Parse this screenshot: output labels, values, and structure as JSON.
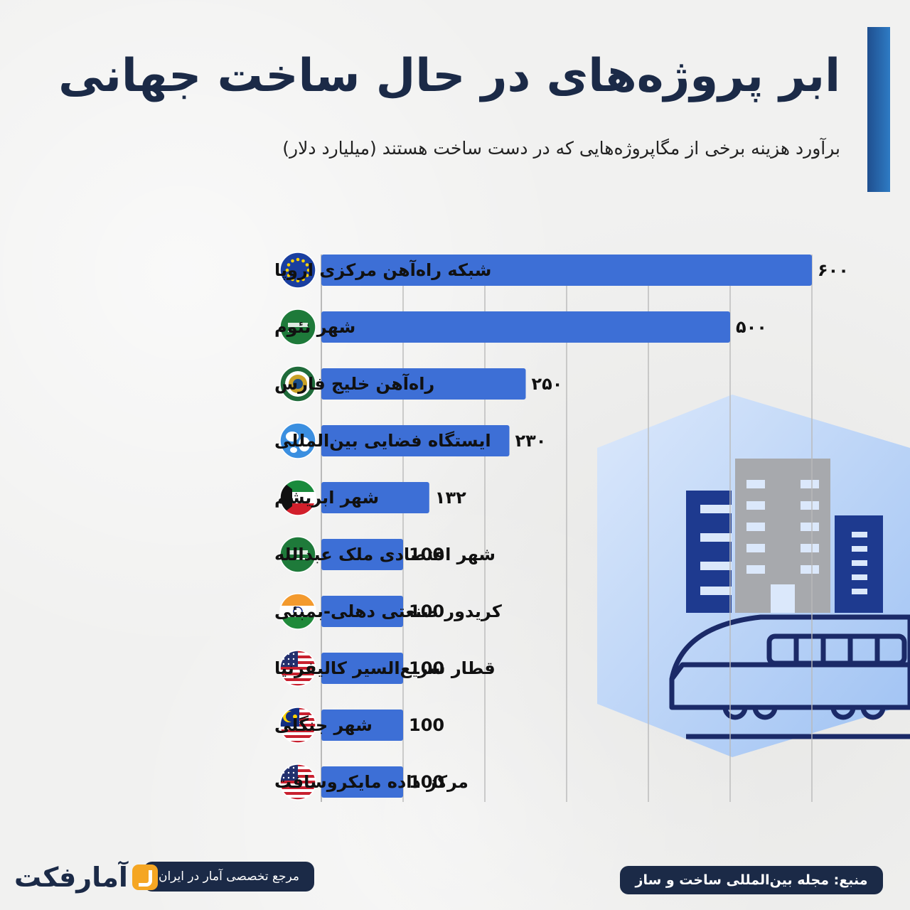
{
  "header": {
    "title": "ابر پروژه‌های در حال ساخت جهانی",
    "subtitle": "برآورد هزینه برخی از مگاپروژه‌هایی که در دست ساخت هستند (میلیارد دلار)"
  },
  "chart_data": {
    "type": "bar",
    "orientation": "horizontal",
    "title": "ابر پروژه‌های در حال ساخت جهانی",
    "subtitle": "برآورد هزینه برخی از مگاپروژه‌هایی که در دست ساخت هستند (میلیارد دلار)",
    "categories": [
      "شبکه راه‌آهن مرکزی اروپا",
      "شهر نئوم",
      "راه‌آهن خلیج فارس",
      "ایستگاه فضایی بین‌المللی",
      "شهر ابریشم",
      "شهر اقتصادی ملک عبدالله",
      "کریدور صنعتی دهلی-بمبئی",
      "قطار سریع‌السیر کالیفرنیا",
      "شهر جنگلی",
      "مرکز داده مایکروسافت"
    ],
    "values": [
      600,
      500,
      250,
      230,
      132,
      100,
      100,
      100,
      100,
      100
    ],
    "value_labels": [
      "۶۰۰",
      "۵۰۰",
      "۲۵۰",
      "۲۳۰",
      "۱۳۲",
      "100",
      "100",
      "100",
      "100",
      "100"
    ],
    "flags": [
      "eu",
      "saudi",
      "gcc",
      "globe",
      "kuwait",
      "saudi",
      "india",
      "usa",
      "malaysia",
      "usa"
    ],
    "xlim": [
      0,
      600
    ],
    "grid": true,
    "bar_color": "#3d6fd6",
    "grid_color": "#b9b9b9"
  },
  "footer": {
    "source": "منبع: مجله بین‌المللی ساخت و ساز",
    "brand_tagline": "مرجع تخصصی آمار در ایران",
    "brand_name": "آمارفکت"
  },
  "colors": {
    "title": "#1b2a47",
    "accent": "#2e7bc4",
    "pill": "#1b2a47",
    "logo": "#f5a623"
  }
}
